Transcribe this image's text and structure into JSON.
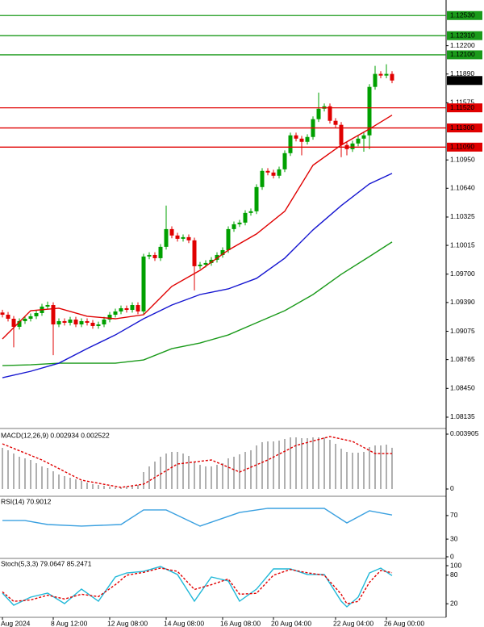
{
  "chart_data": [
    {
      "type": "candlestick",
      "categories": [
        "Aug 2024",
        null,
        null,
        null,
        null,
        null,
        null,
        null,
        null,
        "8 Aug 12:00",
        null,
        null,
        null,
        null,
        null,
        null,
        null,
        null,
        null,
        "12 Aug 08:00",
        null,
        null,
        null,
        null,
        null,
        null,
        null,
        null,
        null,
        "14 Aug 08:00",
        null,
        null,
        null,
        null,
        null,
        null,
        null,
        null,
        null,
        "16 Aug 08:00",
        null,
        null,
        null,
        null,
        null,
        null,
        null,
        null,
        "20 Aug 04:00",
        null,
        null,
        null,
        null,
        null,
        null,
        null,
        null,
        null,
        null,
        "22 Aug 04:00",
        null,
        null,
        null,
        null,
        null,
        null,
        null,
        null,
        "26 Aug 00:00",
        null
      ],
      "open": [
        1.0928,
        1.09256,
        1.09212,
        1.09124,
        1.09186,
        1.09212,
        1.09239,
        1.09274,
        1.09345,
        1.09362,
        1.0915,
        1.09186,
        1.09168,
        1.09203,
        1.0915,
        1.09186,
        1.09168,
        1.09133,
        1.0915,
        1.09203,
        1.09256,
        1.09292,
        1.09327,
        1.09309,
        1.09362,
        1.09292,
        1.09893,
        1.0991,
        1.09875,
        1.09999,
        1.10193,
        1.10123,
        1.10087,
        1.10105,
        1.1007,
        1.09787,
        1.09804,
        1.09822,
        1.09857,
        1.0991,
        1.09963,
        1.10193,
        1.10246,
        1.10264,
        1.1037,
        1.10388,
        1.10653,
        1.1083,
        1.10812,
        1.10777,
        1.10847,
        1.11024,
        1.11219,
        1.11183,
        1.11148,
        1.11201,
        1.11396,
        1.1151,
        1.11537,
        1.11378,
        1.11334,
        1.11113,
        1.11068,
        1.1113,
        1.11183,
        1.11219,
        1.11749,
        1.11891,
        1.11873,
        1.11891
      ],
      "high": [
        1.0931,
        1.09286,
        1.09242,
        1.09216,
        1.09242,
        1.09269,
        1.09304,
        1.09375,
        1.094,
        1.09392,
        1.09216,
        1.09216,
        1.09233,
        1.09233,
        1.09216,
        1.09216,
        1.09198,
        1.0918,
        1.09233,
        1.09286,
        1.09322,
        1.09357,
        1.09357,
        1.09392,
        1.09392,
        1.09923,
        1.0994,
        1.0994,
        1.10029,
        1.1045,
        1.10223,
        1.10153,
        1.10135,
        1.10135,
        1.101,
        1.09834,
        1.09852,
        1.09887,
        1.0994,
        1.09993,
        1.10223,
        1.10276,
        1.10294,
        1.104,
        1.10418,
        1.10683,
        1.1086,
        1.1086,
        1.10842,
        1.10877,
        1.11054,
        1.11249,
        1.11249,
        1.11213,
        1.11231,
        1.11426,
        1.11687,
        1.11567,
        1.11567,
        1.11408,
        1.11364,
        1.11143,
        1.1116,
        1.11213,
        1.11249,
        1.11779,
        1.11979,
        1.11921,
        1.11997,
        1.11921
      ],
      "low": [
        1.09226,
        1.09182,
        1.089,
        1.09094,
        1.09156,
        1.09182,
        1.09209,
        1.09244,
        1.09315,
        1.08814,
        1.0912,
        1.09138,
        1.09138,
        1.0912,
        1.0912,
        1.09138,
        1.09103,
        1.09103,
        1.0912,
        1.09173,
        1.09226,
        1.09262,
        1.09279,
        1.09279,
        1.09262,
        1.09262,
        1.09863,
        1.09845,
        1.09845,
        1.09969,
        1.10093,
        1.10057,
        1.10057,
        1.1004,
        1.09522,
        1.09757,
        1.09774,
        1.09792,
        1.09827,
        1.0988,
        1.09933,
        1.10163,
        1.10216,
        1.10234,
        1.1034,
        1.10358,
        1.10623,
        1.10782,
        1.10747,
        1.10747,
        1.10817,
        1.10994,
        1.11153,
        1.11,
        1.11118,
        1.11171,
        1.11366,
        1.1148,
        1.11348,
        1.11304,
        1.1098,
        1.11,
        1.11038,
        1.111,
        1.1104,
        1.11068,
        1.11719,
        1.11843,
        1.11843,
        1.11789
      ],
      "close": [
        1.09256,
        1.09212,
        1.09124,
        1.09186,
        1.09212,
        1.09239,
        1.09274,
        1.09345,
        1.09362,
        1.0915,
        1.09186,
        1.09168,
        1.09203,
        1.0915,
        1.09186,
        1.09168,
        1.09133,
        1.0915,
        1.09203,
        1.09256,
        1.09292,
        1.09327,
        1.09309,
        1.09362,
        1.09292,
        1.09893,
        1.0991,
        1.09875,
        1.09999,
        1.10193,
        1.10123,
        1.10087,
        1.10105,
        1.1007,
        1.09787,
        1.09804,
        1.09822,
        1.09857,
        1.0991,
        1.09963,
        1.10193,
        1.10246,
        1.10264,
        1.1037,
        1.10388,
        1.10653,
        1.1083,
        1.10812,
        1.10777,
        1.10847,
        1.11024,
        1.11219,
        1.11183,
        1.11148,
        1.11201,
        1.11396,
        1.1151,
        1.11537,
        1.11378,
        1.11334,
        1.11113,
        1.11068,
        1.1113,
        1.11183,
        1.11219,
        1.11749,
        1.11891,
        1.11873,
        1.11891,
        1.11819
      ],
      "up_color": "#00a000",
      "down_color": "#e00000",
      "series": [
        {
          "color": "#1a9a1a",
          "x": [
            0,
            5,
            10,
            15,
            20,
            25,
            30,
            35,
            40,
            45,
            50,
            55,
            60,
            65,
            69
          ],
          "values": [
            1.08699,
            1.08708,
            1.08726,
            1.08726,
            1.08726,
            1.08761,
            1.08885,
            1.08947,
            1.09035,
            1.09168,
            1.093,
            1.09477,
            1.09698,
            1.09893,
            1.10052
          ]
        },
        {
          "color": "#1515d0",
          "x": [
            0,
            5,
            10,
            15,
            20,
            25,
            30,
            35,
            40,
            45,
            50,
            55,
            60,
            65,
            69
          ],
          "values": [
            1.08567,
            1.08637,
            1.08726,
            1.08885,
            1.09035,
            1.09212,
            1.09362,
            1.09477,
            1.09539,
            1.09654,
            1.09875,
            1.10184,
            1.1045,
            1.10688,
            1.10803
          ]
        },
        {
          "color": "#e00000",
          "x": [
            0,
            5,
            10,
            15,
            20,
            25,
            30,
            35,
            40,
            45,
            50,
            55,
            60,
            65,
            69
          ],
          "values": [
            1.08991,
            1.093,
            1.09327,
            1.09239,
            1.09212,
            1.09256,
            1.09566,
            1.09742,
            1.09963,
            1.1014,
            1.10388,
            1.10892,
            1.11113,
            1.11289,
            1.1144
          ]
        }
      ],
      "levels": [
        {
          "value": 1.1253,
          "label": "1.12530",
          "color": "#1a9a1a"
        },
        {
          "value": 1.1231,
          "label": "1.12310",
          "color": "#1a9a1a"
        },
        {
          "value": 1.121,
          "label": "1.12100",
          "color": "#1a9a1a"
        },
        {
          "value": 1.1152,
          "label": "1.11520",
          "color": "#e00000"
        },
        {
          "value": 1.113,
          "label": "1.11300",
          "color": "#e00000"
        },
        {
          "value": 1.1109,
          "label": "1.11090",
          "color": "#e00000"
        }
      ],
      "last_price": {
        "value": 1.11819,
        "label": "1.11819"
      },
      "ylim": [
        1.0802,
        1.127
      ],
      "yticks": [
        {
          "value": 1.122,
          "label": "1.12200"
        },
        {
          "value": 1.1189,
          "label": "1.11890"
        },
        {
          "value": 1.11575,
          "label": "1.11575"
        },
        {
          "value": 1.1095,
          "label": "1.10950"
        },
        {
          "value": 1.1064,
          "label": "1.10640"
        },
        {
          "value": 1.10325,
          "label": "1.10325"
        },
        {
          "value": 1.10015,
          "label": "1.10015"
        },
        {
          "value": 1.097,
          "label": "1.09700"
        },
        {
          "value": 1.0939,
          "label": "1.09390"
        },
        {
          "value": 1.09075,
          "label": "1.09075"
        },
        {
          "value": 1.08765,
          "label": "1.08765"
        },
        {
          "value": 1.0845,
          "label": "1.08450"
        },
        {
          "value": 1.08135,
          "label": "1.08135"
        }
      ]
    },
    {
      "type": "macd",
      "title": "MACD(12,26,9) 0.002934 0.002522",
      "color": "#b0b0b0",
      "values": [
        0.002929,
        0.002757,
        0.002527,
        0.002297,
        0.002182,
        0.002067,
        0.001838,
        0.001608,
        0.001493,
        0.001263,
        0.001034,
        0.000919,
        0.000804,
        0.000689,
        0.000574,
        0.000459,
        0.000345,
        0.000287,
        0.00023,
        0.000172,
        0.000115,
        0.000115,
        0.000172,
        0.00023,
        0.000287,
        0.001206,
        0.001608,
        0.001953,
        0.002297,
        0.002527,
        0.002642,
        0.002642,
        0.002527,
        0.002355,
        0.001953,
        0.001723,
        0.001608,
        0.001608,
        0.001723,
        0.001838,
        0.002182,
        0.002297,
        0.002469,
        0.002642,
        0.002757,
        0.003101,
        0.003331,
        0.003388,
        0.003388,
        0.003446,
        0.003561,
        0.003676,
        0.003676,
        0.003618,
        0.003618,
        0.003676,
        0.003676,
        0.003676,
        0.003503,
        0.003216,
        0.002872,
        0.002642,
        0.002584,
        0.002584,
        0.002642,
        0.002986,
        0.003101,
        0.003101,
        0.003159,
        0.002934
      ],
      "series": [
        {
          "color": "#e00000",
          "style": "dashed",
          "x": [
            0,
            7,
            14,
            21,
            25,
            31,
            37,
            42,
            47,
            52,
            58,
            62,
            66,
            69
          ],
          "values": [
            0.003216,
            0.002067,
            0.000632,
            0.000115,
            0.000345,
            0.00178,
            0.002067,
            0.001206,
            0.002067,
            0.003101,
            0.003733,
            0.003388,
            0.002527,
            0.002522
          ]
        }
      ],
      "ylim": [
        -0.000402,
        0.004192
      ],
      "yticks": [
        0,
        0.003905
      ]
    },
    {
      "type": "line",
      "title": "RSI(14) 70.9012",
      "series": [
        {
          "color": "#3aa0e0",
          "x": [
            0,
            4,
            8,
            14,
            21,
            25,
            29,
            35,
            42,
            47,
            51,
            57,
            61,
            65,
            69
          ],
          "values": [
            61.6,
            61.6,
            54.8,
            52.1,
            54.8,
            79.5,
            79.5,
            52.1,
            75.3,
            82.2,
            82.2,
            82.2,
            57.5,
            78.1,
            70.9012
          ]
        }
      ],
      "ylim": [
        0,
        100
      ],
      "yticks": [
        0,
        30,
        70
      ]
    },
    {
      "type": "line",
      "title": "Stoch(5,3,3) 79.0647 85.2471",
      "series": [
        {
          "color": "#20b8d8",
          "x": [
            0,
            2,
            5,
            8,
            11,
            14,
            17,
            20,
            22,
            25,
            28,
            31,
            34,
            37,
            40,
            42,
            45,
            48,
            51,
            54,
            57,
            60,
            61,
            63,
            65,
            67,
            69
          ],
          "values": [
            42.4,
            16.9,
            33.9,
            42.4,
            20.3,
            50.8,
            25.4,
            76.3,
            84.7,
            88.1,
            98.3,
            81.4,
            25.4,
            76.3,
            67.8,
            25.4,
            50.8,
            93.2,
            93.2,
            81.4,
            81.4,
            25.4,
            13.6,
            33.9,
            84.7,
            94.9,
            79.0647
          ]
        },
        {
          "color": "#e00000",
          "style": "dashed",
          "x": [
            0,
            2,
            5,
            8,
            11,
            14,
            17,
            20,
            22,
            25,
            28,
            31,
            34,
            37,
            40,
            42,
            45,
            48,
            51,
            54,
            57,
            60,
            61,
            63,
            65,
            67,
            69
          ],
          "values": [
            45,
            25,
            28,
            38,
            30,
            40,
            35,
            60,
            80,
            86,
            95,
            88,
            50,
            60,
            72,
            40,
            42,
            80,
            92,
            85,
            80,
            40,
            20,
            25,
            65,
            90,
            85.2471
          ]
        }
      ],
      "ylim": [
        0,
        100
      ],
      "yticks": [
        20,
        80,
        100
      ]
    }
  ]
}
